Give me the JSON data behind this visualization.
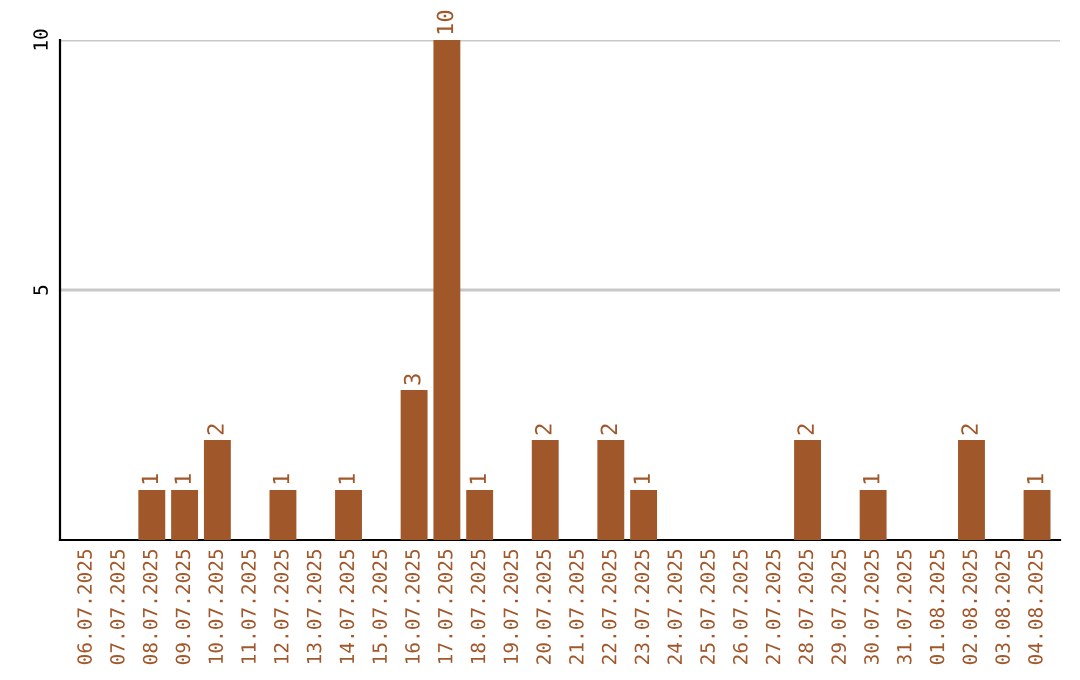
{
  "chart_data": {
    "type": "bar",
    "categories": [
      "06.07.2025",
      "07.07.2025",
      "08.07.2025",
      "09.07.2025",
      "10.07.2025",
      "11.07.2025",
      "12.07.2025",
      "13.07.2025",
      "14.07.2025",
      "15.07.2025",
      "16.07.2025",
      "17.07.2025",
      "18.07.2025",
      "19.07.2025",
      "20.07.2025",
      "21.07.2025",
      "22.07.2025",
      "23.07.2025",
      "24.07.2025",
      "25.07.2025",
      "26.07.2025",
      "27.07.2025",
      "28.07.2025",
      "29.07.2025",
      "30.07.2025",
      "31.07.2025",
      "01.08.2025",
      "02.08.2025",
      "03.08.2025",
      "04.08.2025"
    ],
    "values": [
      0,
      0,
      1,
      1,
      2,
      0,
      1,
      0,
      1,
      0,
      3,
      10,
      1,
      0,
      2,
      0,
      2,
      1,
      0,
      0,
      0,
      0,
      2,
      0,
      1,
      0,
      0,
      2,
      0,
      1
    ],
    "value_labels": [
      null,
      null,
      "1",
      "1",
      "2",
      null,
      "1",
      null,
      "1",
      null,
      "3",
      "10",
      "1",
      null,
      "2",
      null,
      "2",
      "1",
      null,
      null,
      null,
      null,
      "2",
      null,
      "1",
      null,
      null,
      "2",
      null,
      "1"
    ],
    "color": "#a0572a",
    "ylim": [
      0,
      10
    ],
    "yticks": [
      5,
      10
    ],
    "grid": "y"
  }
}
